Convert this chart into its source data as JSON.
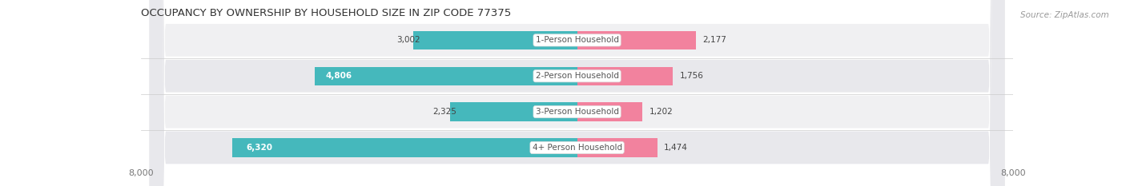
{
  "title": "OCCUPANCY BY OWNERSHIP BY HOUSEHOLD SIZE IN ZIP CODE 77375",
  "source": "Source: ZipAtlas.com",
  "categories": [
    "1-Person Household",
    "2-Person Household",
    "3-Person Household",
    "4+ Person Household"
  ],
  "owner_values": [
    3002,
    4806,
    2325,
    6320
  ],
  "renter_values": [
    2177,
    1756,
    1202,
    1474
  ],
  "owner_color": "#45B8BC",
  "renter_color": "#F07090",
  "renter_color_light": "#F9B8C8",
  "row_bg_even": "#F0F0F2",
  "row_bg_odd": "#E8E8EC",
  "axis_max": 8000,
  "title_fontsize": 9.5,
  "source_fontsize": 7.5,
  "label_fontsize": 7.5,
  "tick_fontsize": 8,
  "legend_fontsize": 8,
  "figsize": [
    14.06,
    2.33
  ],
  "dpi": 100,
  "inside_value_threshold": 0.45,
  "bar_height": 0.52
}
